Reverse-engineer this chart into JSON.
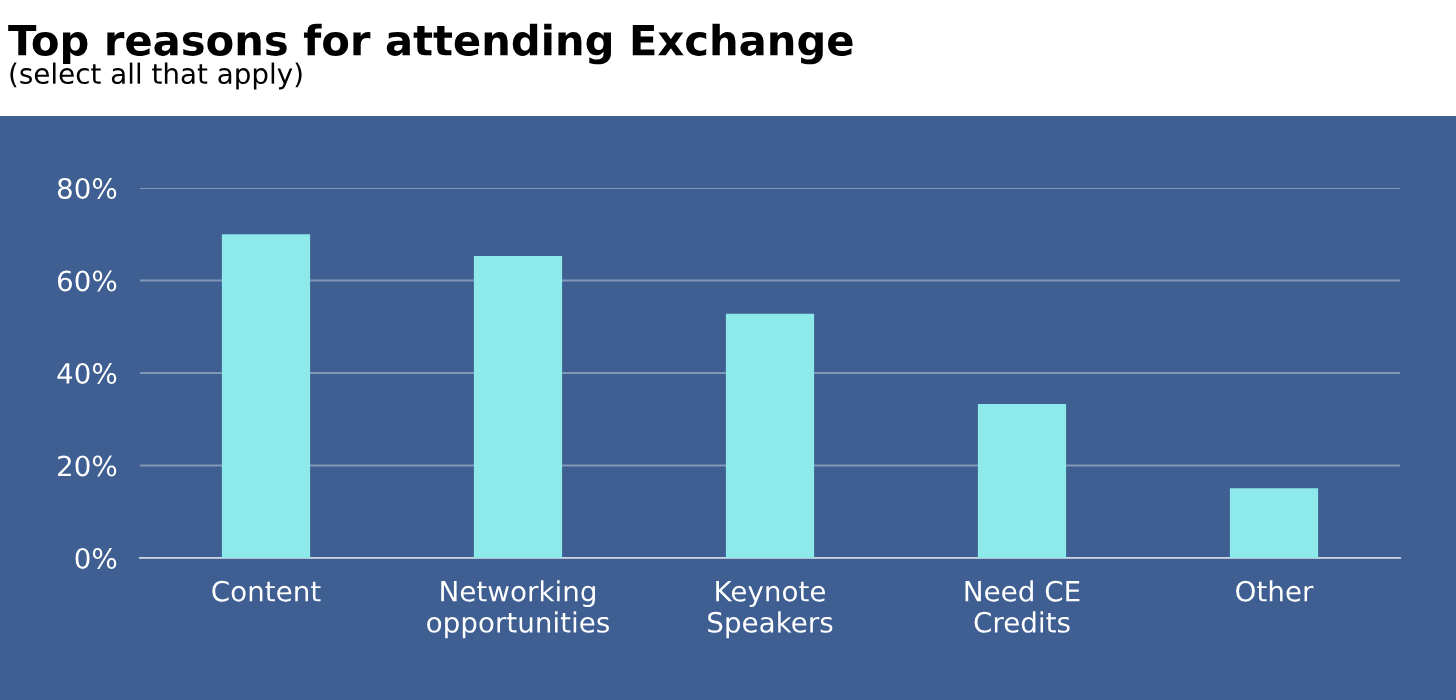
{
  "chart_data": {
    "type": "bar",
    "title": "Top reasons for attending Exchange",
    "subtitle": "(select all that apply)",
    "categories": [
      "Content",
      "Networking\nopportunities",
      "Keynote\nSpeakers",
      "Need CE\nCredits",
      "Other"
    ],
    "values": [
      70,
      65.3,
      52.8,
      33.3,
      15.1
    ],
    "color": "#8eeaea",
    "ylim": [
      0,
      80
    ],
    "yticks": [
      {
        "value": 0,
        "label": "0%"
      },
      {
        "value": 20,
        "label": "20%"
      },
      {
        "value": 40,
        "label": "40%"
      },
      {
        "value": 60,
        "label": "60%"
      },
      {
        "value": 80,
        "label": "80%"
      }
    ],
    "grid": "y"
  }
}
